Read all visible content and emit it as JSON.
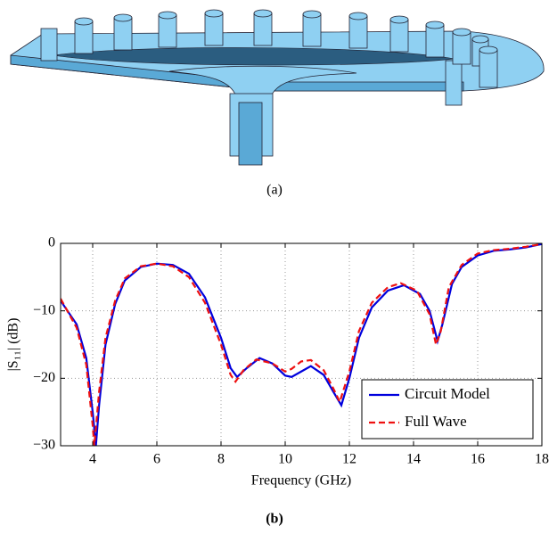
{
  "captions": {
    "a": "(a)",
    "b": "(b)"
  },
  "chart_data": {
    "type": "line",
    "x_label": "Frequency (GHz)",
    "y_label": "|S₁₁| (dB)",
    "xlim": [
      3,
      18
    ],
    "xticks": [
      4,
      6,
      8,
      10,
      12,
      14,
      16,
      18
    ],
    "ylim": [
      -30,
      0
    ],
    "yticks": [
      0,
      {
        "value": -10,
        "label": "−10"
      },
      {
        "value": -20,
        "label": "−20"
      },
      {
        "value": -30,
        "label": "−30"
      }
    ],
    "grid": true,
    "legend": "lower right",
    "series": [
      {
        "name": "Circuit Model",
        "color": "#0000dd",
        "dash": false,
        "x": [
          3,
          3.5,
          3.8,
          4.0,
          4.1,
          4.2,
          4.4,
          4.7,
          5,
          5.5,
          6,
          6.5,
          7,
          7.5,
          8,
          8.3,
          8.5,
          8.8,
          9.2,
          9.6,
          10,
          10.2,
          10.5,
          10.8,
          11.2,
          11.5,
          11.75,
          12,
          12.3,
          12.7,
          13.2,
          13.7,
          14.2,
          14.5,
          14.75,
          14.9,
          15.2,
          15.5,
          16,
          16.5,
          17,
          17.5,
          18
        ],
        "values": [
          -8.5,
          -12,
          -17,
          -25,
          -30,
          -24,
          -15,
          -9,
          -5.5,
          -3.5,
          -3,
          -3.2,
          -4.5,
          -8,
          -14,
          -18.5,
          -19.8,
          -18.5,
          -17,
          -17.8,
          -19.6,
          -19.8,
          -19,
          -18.2,
          -19.5,
          -22,
          -24,
          -20,
          -14,
          -9.5,
          -7,
          -6.2,
          -7.5,
          -10,
          -14.5,
          -12,
          -6,
          -3.5,
          -1.8,
          -1.1,
          -0.9,
          -0.6,
          -0.1
        ]
      },
      {
        "name": "Full Wave",
        "color": "#ee1111",
        "dash": true,
        "x": [
          3,
          3.5,
          3.8,
          4.0,
          4.05,
          4.2,
          4.4,
          4.7,
          5,
          5.5,
          6,
          6.5,
          7,
          7.5,
          8,
          8.3,
          8.45,
          8.7,
          9.1,
          9.6,
          10,
          10.2,
          10.5,
          10.8,
          11.2,
          11.5,
          11.7,
          12,
          12.3,
          12.7,
          13.2,
          13.6,
          14.1,
          14.5,
          14.7,
          14.85,
          15.1,
          15.5,
          16,
          16.5,
          17,
          17.5,
          18
        ],
        "values": [
          -8.2,
          -12.5,
          -18,
          -27,
          -30,
          -22,
          -14,
          -8.5,
          -5.2,
          -3.4,
          -3,
          -3.4,
          -5,
          -8.8,
          -15,
          -19.5,
          -20.5,
          -18.8,
          -17.2,
          -17.8,
          -19,
          -18.6,
          -17.5,
          -17.3,
          -18.8,
          -21.5,
          -23.5,
          -19,
          -13,
          -8.8,
          -6.5,
          -5.9,
          -7,
          -10.5,
          -15,
          -13,
          -6.5,
          -3.2,
          -1.5,
          -1,
          -0.8,
          -0.5,
          -0.1
        ]
      }
    ]
  }
}
